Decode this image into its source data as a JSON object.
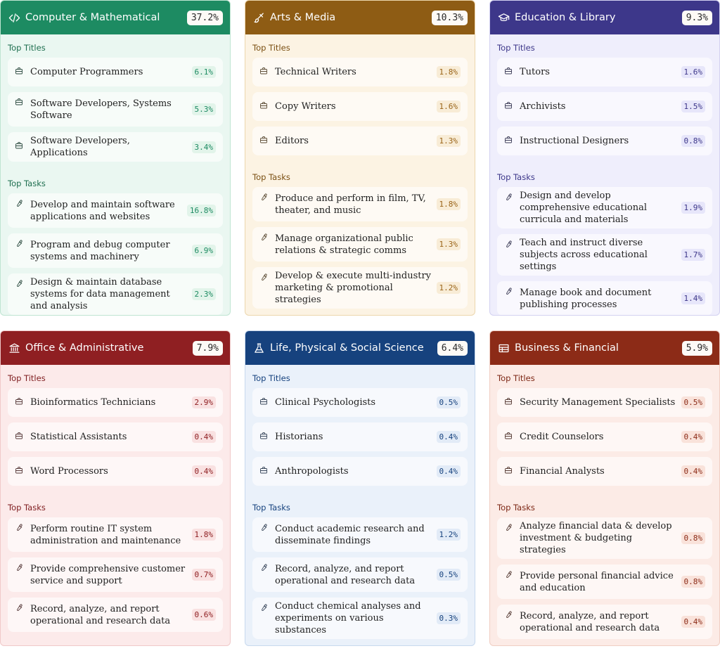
{
  "cards": [
    {
      "title": "Computer & Mathematical",
      "percent": "37.2%",
      "icon": "code-icon",
      "top_titles_label": "Top Titles",
      "top_tasks_label": "Top Tasks",
      "titles": [
        {
          "label": "Computer Programmers",
          "percent": "6.1%"
        },
        {
          "label": "Software Developers, Systems Software",
          "percent": "5.3%"
        },
        {
          "label": "Software Developers, Applications",
          "percent": "3.4%"
        }
      ],
      "tasks": [
        {
          "label": "Develop and maintain software applications and websites",
          "percent": "16.8%"
        },
        {
          "label": "Program and debug computer systems and machinery",
          "percent": "6.9%"
        },
        {
          "label": "Design & maintain database systems for data management and analysis",
          "percent": "2.3%"
        }
      ]
    },
    {
      "title": "Arts & Media",
      "percent": "10.3%",
      "icon": "brush-icon",
      "top_titles_label": "Top Titles",
      "top_tasks_label": "Top Tasks",
      "titles": [
        {
          "label": "Technical Writers",
          "percent": "1.8%"
        },
        {
          "label": "Copy Writers",
          "percent": "1.6%"
        },
        {
          "label": "Editors",
          "percent": "1.3%"
        }
      ],
      "tasks": [
        {
          "label": "Produce and perform in film, TV, theater, and music",
          "percent": "1.8%"
        },
        {
          "label": "Manage organizational public relations & strategic comms",
          "percent": "1.3%"
        },
        {
          "label": "Develop & execute multi-industry marketing & promotional strategies",
          "percent": "1.2%"
        }
      ]
    },
    {
      "title": "Education & Library",
      "percent": "9.3%",
      "icon": "graduation-cap-icon",
      "top_titles_label": "Top Titles",
      "top_tasks_label": "Top Tasks",
      "titles": [
        {
          "label": "Tutors",
          "percent": "1.6%"
        },
        {
          "label": "Archivists",
          "percent": "1.5%"
        },
        {
          "label": "Instructional Designers",
          "percent": "0.8%"
        }
      ],
      "tasks": [
        {
          "label": "Design and develop comprehensive educational curricula and materials",
          "percent": "1.9%"
        },
        {
          "label": "Teach and instruct diverse subjects across educational settings",
          "percent": "1.7%"
        },
        {
          "label": "Manage book and document publishing processes",
          "percent": "1.4%"
        }
      ]
    },
    {
      "title": "Office & Administrative",
      "percent": "7.9%",
      "icon": "building-icon",
      "top_titles_label": "Top Titles",
      "top_tasks_label": "Top Tasks",
      "titles": [
        {
          "label": "Bioinformatics Technicians",
          "percent": "2.9%"
        },
        {
          "label": "Statistical Assistants",
          "percent": "0.4%"
        },
        {
          "label": "Word Processors",
          "percent": "0.4%"
        }
      ],
      "tasks": [
        {
          "label": "Perform routine IT system administration and maintenance",
          "percent": "1.8%"
        },
        {
          "label": "Provide comprehensive customer service and support",
          "percent": "0.7%"
        },
        {
          "label": "Record, analyze, and report operational and research data",
          "percent": "0.6%"
        }
      ]
    },
    {
      "title": "Life, Physical & Social Science",
      "percent": "6.4%",
      "icon": "flask-icon",
      "top_titles_label": "Top Titles",
      "top_tasks_label": "Top Tasks",
      "titles": [
        {
          "label": "Clinical Psychologists",
          "percent": "0.5%"
        },
        {
          "label": "Historians",
          "percent": "0.4%"
        },
        {
          "label": "Anthropologists",
          "percent": "0.4%"
        }
      ],
      "tasks": [
        {
          "label": "Conduct academic research and disseminate findings",
          "percent": "1.2%"
        },
        {
          "label": "Record, analyze, and report operational and research data",
          "percent": "0.5%"
        },
        {
          "label": "Conduct chemical analyses and experiments on various substances",
          "percent": "0.3%"
        }
      ]
    },
    {
      "title": "Business & Financial",
      "percent": "5.9%",
      "icon": "table-icon",
      "top_titles_label": "Top Titles",
      "top_tasks_label": "Top Tasks",
      "titles": [
        {
          "label": "Security Management Specialists",
          "percent": "0.5%"
        },
        {
          "label": "Credit Counselors",
          "percent": "0.4%"
        },
        {
          "label": "Financial Analysts",
          "percent": "0.4%"
        }
      ],
      "tasks": [
        {
          "label": "Analyze financial data & develop investment & budgeting strategies",
          "percent": "0.8%"
        },
        {
          "label": "Provide personal financial advice and education",
          "percent": "0.8%"
        },
        {
          "label": "Record, analyze, and report operational and research data",
          "percent": "0.4%"
        }
      ]
    }
  ]
}
